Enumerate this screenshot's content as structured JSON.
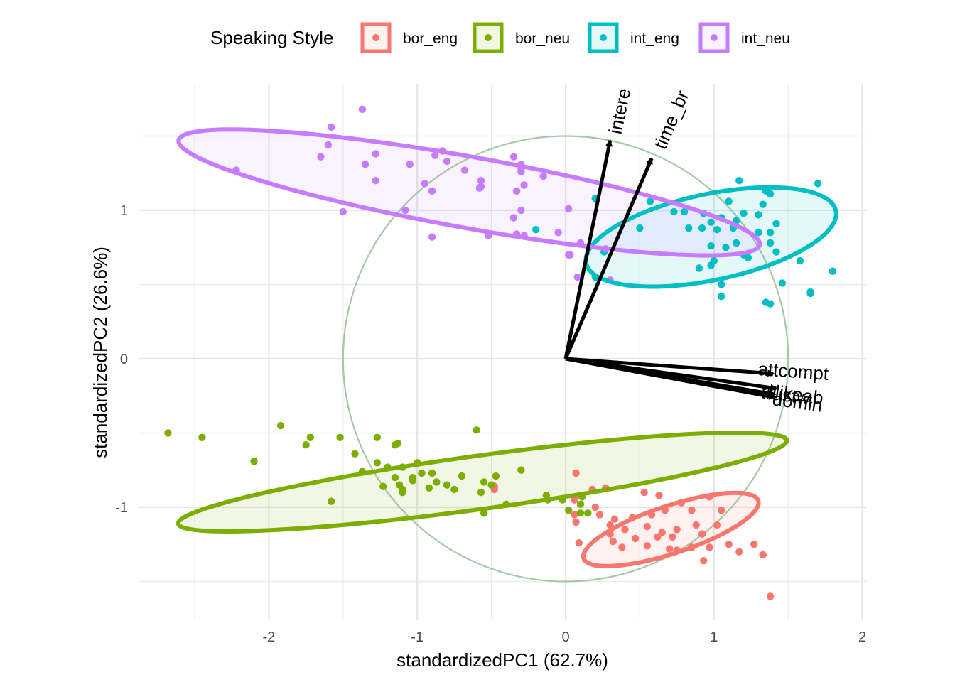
{
  "chart_data": {
    "type": "scatter",
    "title": "",
    "xlabel": "standardizedPC1 (62.7%)",
    "ylabel": "standardizedPC2 (26.6%)",
    "xlim": [
      -2.5,
      2
    ],
    "ylim": [
      -1.75,
      1.75
    ],
    "x_ticks": [
      -2,
      -1,
      0,
      1,
      2
    ],
    "y_ticks": [
      -1,
      0,
      1
    ],
    "grid": true,
    "legend": {
      "title": "Speaking Style",
      "position": "top"
    },
    "correlation_circle_radius": 1.5,
    "series": [
      {
        "name": "bor_eng",
        "color": "#F8766D",
        "ellipse": {
          "cx": 0.71,
          "cy": -1.15,
          "rx": 0.62,
          "ry": 0.16,
          "angle_deg": -18.3
        },
        "points": [
          [
            0.07,
            -0.77
          ],
          [
            0.18,
            -0.88
          ],
          [
            0.27,
            -0.87
          ],
          [
            0.53,
            -0.9
          ],
          [
            0.63,
            -0.92
          ],
          [
            0.78,
            -0.97
          ],
          [
            0.97,
            -0.93
          ],
          [
            0.06,
            -0.95
          ],
          [
            0.2,
            -1.0
          ],
          [
            0.06,
            -1.05
          ],
          [
            0.23,
            -1.05
          ],
          [
            0.33,
            -1.08
          ],
          [
            0.45,
            -1.07
          ],
          [
            0.58,
            -1.05
          ],
          [
            0.67,
            -1.02
          ],
          [
            0.85,
            -1.02
          ],
          [
            1.05,
            -1.02
          ],
          [
            0.07,
            -1.1
          ],
          [
            0.3,
            -1.12
          ],
          [
            0.4,
            -1.15
          ],
          [
            0.55,
            -1.13
          ],
          [
            0.65,
            -1.17
          ],
          [
            0.75,
            -1.15
          ],
          [
            0.88,
            -1.12
          ],
          [
            0.3,
            -1.18
          ],
          [
            0.47,
            -1.21
          ],
          [
            0.62,
            -1.2
          ],
          [
            0.72,
            -1.2
          ],
          [
            0.92,
            -1.18
          ],
          [
            1.02,
            -1.12
          ],
          [
            0.09,
            -1.24
          ],
          [
            0.32,
            -1.23
          ],
          [
            0.38,
            -1.27
          ],
          [
            0.55,
            -1.26
          ],
          [
            0.7,
            -1.28
          ],
          [
            0.85,
            -1.27
          ],
          [
            0.97,
            -1.27
          ],
          [
            1.1,
            -1.25
          ],
          [
            1.27,
            -1.25
          ],
          [
            0.75,
            -1.29
          ],
          [
            1.17,
            -1.3
          ],
          [
            1.33,
            -1.32
          ],
          [
            0.93,
            -1.36
          ],
          [
            1.38,
            -1.6
          ],
          [
            -0.48,
            -0.86
          ],
          [
            -0.48,
            -0.88
          ]
        ]
      },
      {
        "name": "bor_neu",
        "color": "#7CAE00",
        "ellipse": {
          "cx": -0.56,
          "cy": -0.83,
          "rx": 2.07,
          "ry": 0.18,
          "angle_deg": -7.8
        },
        "points": [
          [
            -2.68,
            -0.5
          ],
          [
            -2.45,
            -0.53
          ],
          [
            -2.1,
            -0.69
          ],
          [
            -1.92,
            -0.45
          ],
          [
            -1.72,
            -0.53
          ],
          [
            -1.75,
            -0.58
          ],
          [
            -1.58,
            -0.96
          ],
          [
            -1.52,
            -0.53
          ],
          [
            -1.27,
            -0.53
          ],
          [
            -1.15,
            -0.58
          ],
          [
            -1.13,
            -0.57
          ],
          [
            -1.42,
            -0.64
          ],
          [
            -1.37,
            -0.76
          ],
          [
            -1.27,
            -0.7
          ],
          [
            -1.2,
            -0.73
          ],
          [
            -1.1,
            -0.73
          ],
          [
            -1.0,
            -0.7
          ],
          [
            -1.15,
            -0.8
          ],
          [
            -0.97,
            -0.77
          ],
          [
            -0.9,
            -0.77
          ],
          [
            -0.7,
            -0.79
          ],
          [
            -0.47,
            -0.79
          ],
          [
            -0.3,
            -0.75
          ],
          [
            -1.23,
            -0.86
          ],
          [
            -1.12,
            -0.85
          ],
          [
            -1.03,
            -0.8
          ],
          [
            -0.92,
            -0.87
          ],
          [
            -0.75,
            -0.88
          ],
          [
            -0.5,
            -0.85
          ],
          [
            -1.1,
            -0.88
          ],
          [
            -0.8,
            -0.85
          ],
          [
            -0.55,
            -0.83
          ],
          [
            -1.1,
            -0.9
          ],
          [
            -0.57,
            -0.9
          ],
          [
            -0.13,
            -0.92
          ],
          [
            -1.03,
            -0.82
          ],
          [
            -0.87,
            -0.83
          ],
          [
            -0.6,
            -0.48
          ],
          [
            -0.4,
            -0.98
          ],
          [
            -0.55,
            -1.04
          ],
          [
            0.1,
            -1.04
          ],
          [
            0.11,
            -0.93
          ],
          [
            0.1,
            -0.98
          ],
          [
            0.15,
            -1.04
          ],
          [
            -0.02,
            -0.95
          ],
          [
            0.02,
            -1.02
          ],
          [
            -0.12,
            -0.95
          ]
        ]
      },
      {
        "name": "int_eng",
        "color": "#00BFC4",
        "ellipse": {
          "cx": 0.98,
          "cy": 0.82,
          "rx": 0.86,
          "ry": 0.29,
          "angle_deg": -11.9
        },
        "points": [
          [
            0.2,
            1.08
          ],
          [
            0.57,
            1.06
          ],
          [
            0.73,
            0.99
          ],
          [
            0.8,
            0.99
          ],
          [
            0.93,
            0.98
          ],
          [
            0.98,
            0.92
          ],
          [
            1.05,
            0.95
          ],
          [
            1.15,
            0.93
          ],
          [
            1.2,
            0.98
          ],
          [
            1.3,
            0.97
          ],
          [
            1.33,
            1.04
          ],
          [
            1.38,
            1.11
          ],
          [
            1.1,
            1.06
          ],
          [
            1.17,
            1.2
          ],
          [
            1.35,
            1.13
          ],
          [
            1.7,
            1.18
          ],
          [
            0.5,
            0.88
          ],
          [
            0.83,
            0.88
          ],
          [
            0.92,
            0.88
          ],
          [
            1.02,
            0.87
          ],
          [
            1.13,
            0.88
          ],
          [
            1.3,
            0.85
          ],
          [
            1.38,
            0.85
          ],
          [
            1.42,
            0.91
          ],
          [
            1.15,
            0.78
          ],
          [
            1.2,
            0.7
          ],
          [
            1.23,
            0.68
          ],
          [
            1.38,
            0.78
          ],
          [
            1.42,
            0.72
          ],
          [
            1.58,
            0.66
          ],
          [
            0.98,
            0.76
          ],
          [
            1.0,
            0.66
          ],
          [
            1.08,
            0.75
          ],
          [
            0.9,
            0.61
          ],
          [
            0.98,
            0.63
          ],
          [
            1.05,
            0.5
          ],
          [
            1.05,
            0.42
          ],
          [
            1.46,
            0.51
          ],
          [
            1.65,
            0.45
          ],
          [
            1.65,
            0.44
          ],
          [
            1.8,
            0.59
          ],
          [
            1.38,
            0.37
          ],
          [
            1.35,
            0.38
          ],
          [
            -0.2,
            0.87
          ],
          [
            0.2,
            0.55
          ],
          [
            0.26,
            0.72
          ]
        ]
      },
      {
        "name": "int_neu",
        "color": "#C77CFF",
        "ellipse": {
          "cx": -0.65,
          "cy": 1.12,
          "rx": 1.99,
          "ry": 0.24,
          "angle_deg": 10.2
        },
        "points": [
          [
            -2.22,
            1.27
          ],
          [
            -1.58,
            1.56
          ],
          [
            -1.6,
            1.44
          ],
          [
            -1.65,
            1.36
          ],
          [
            -1.37,
            1.68
          ],
          [
            -1.5,
            0.99
          ],
          [
            -1.35,
            1.31
          ],
          [
            -1.28,
            1.38
          ],
          [
            -1.28,
            1.2
          ],
          [
            -1.05,
            1.31
          ],
          [
            -0.88,
            1.37
          ],
          [
            -0.83,
            1.4
          ],
          [
            -0.8,
            1.33
          ],
          [
            -0.95,
            1.18
          ],
          [
            -0.9,
            1.13
          ],
          [
            -0.68,
            1.27
          ],
          [
            -0.57,
            1.2
          ],
          [
            -0.57,
            1.16
          ],
          [
            -0.58,
            1.15
          ],
          [
            -0.35,
            1.36
          ],
          [
            -0.3,
            1.31
          ],
          [
            -0.3,
            1.26
          ],
          [
            -0.3,
            1.28
          ],
          [
            -0.15,
            1.23
          ],
          [
            -0.28,
            1.17
          ],
          [
            -0.33,
            1.13
          ],
          [
            -1.08,
            1.0
          ],
          [
            -0.9,
            0.82
          ],
          [
            -0.52,
            0.83
          ],
          [
            -0.3,
            1.0
          ],
          [
            -0.35,
            0.95
          ],
          [
            -0.33,
            0.84
          ],
          [
            -0.28,
            0.83
          ],
          [
            0.02,
            1.01
          ],
          [
            -0.05,
            0.85
          ],
          [
            0.03,
            0.7
          ],
          [
            0.03,
            0.7
          ],
          [
            0.02,
            0.7
          ],
          [
            0.08,
            0.55
          ],
          [
            0.3,
            0.53
          ],
          [
            0.27,
            0.74
          ],
          [
            0.1,
            0.78
          ]
        ]
      }
    ],
    "loadings": [
      {
        "name": "intere",
        "x": 0.3,
        "y": 1.47
      },
      {
        "name": "time_br",
        "x": 0.58,
        "y": 1.35
      },
      {
        "name": "attcompt",
        "x": 1.4,
        "y": -0.1
      },
      {
        "name": "trustw",
        "x": 1.42,
        "y": -0.2
      },
      {
        "name": "likeab",
        "x": 1.41,
        "y": -0.24
      },
      {
        "name": "domin",
        "x": 1.41,
        "y": -0.26
      }
    ],
    "loading_labels": [
      {
        "text": "intere",
        "angle": -78
      },
      {
        "text": "time_br",
        "angle": -67
      },
      {
        "text": "attcompt",
        "angle": 4
      },
      {
        "text": "trustw",
        "angle": 8
      },
      {
        "text": "likeab",
        "angle": 8
      },
      {
        "text": "domin",
        "angle": 8
      }
    ]
  }
}
